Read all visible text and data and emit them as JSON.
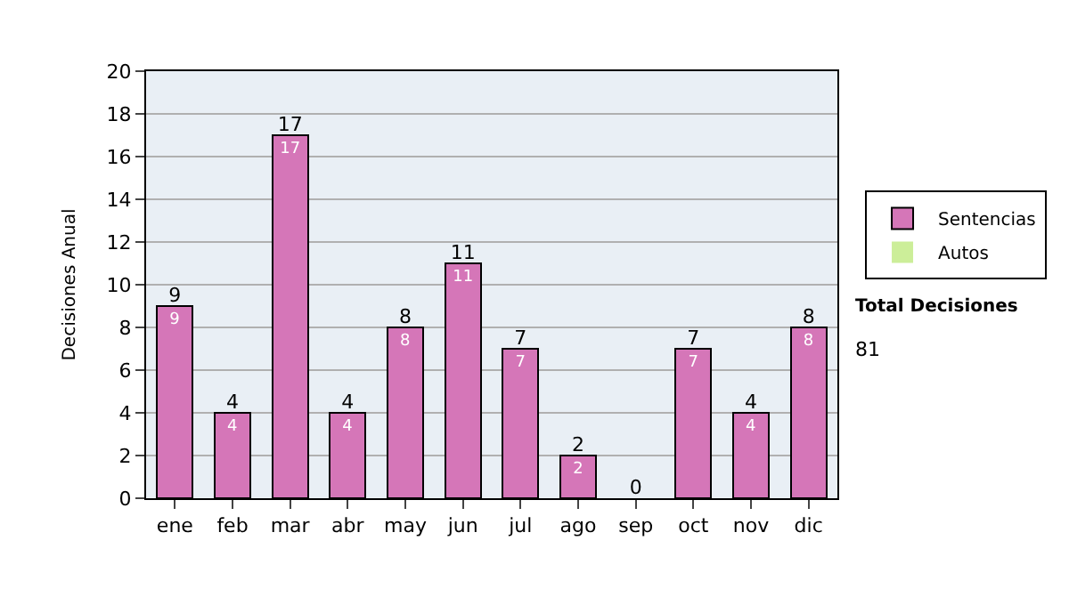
{
  "chart_data": {
    "type": "bar",
    "stacked": true,
    "ylabel": "Decisiones Anual",
    "categories": [
      "ene",
      "feb",
      "mar",
      "abr",
      "may",
      "jun",
      "jul",
      "ago",
      "sep",
      "oct",
      "nov",
      "dic"
    ],
    "series": [
      {
        "name": "Sentencias",
        "color": "#d576b8",
        "values": [
          9,
          4,
          17,
          4,
          8,
          11,
          7,
          2,
          0,
          7,
          4,
          8
        ],
        "value_labels": [
          "9",
          "4",
          "17",
          "4",
          "8",
          "11",
          "7",
          "2",
          null,
          "7",
          "4",
          "8"
        ]
      },
      {
        "name": "Autos",
        "color": "#ccee99",
        "values": [
          0,
          0,
          0,
          0,
          0,
          0,
          0,
          0,
          0,
          0,
          0,
          0
        ]
      }
    ],
    "totals": [
      "9",
      "4",
      "17",
      "4",
      "8",
      "11",
      "7",
      "2",
      "0",
      "7",
      "4",
      "8"
    ],
    "ylim": [
      0,
      20
    ],
    "yticks": [
      0,
      2,
      4,
      6,
      8,
      10,
      12,
      14,
      16,
      18,
      20
    ],
    "grid": "y",
    "legend": "right",
    "annotations": [
      "Total Decisiones",
      "81"
    ]
  }
}
